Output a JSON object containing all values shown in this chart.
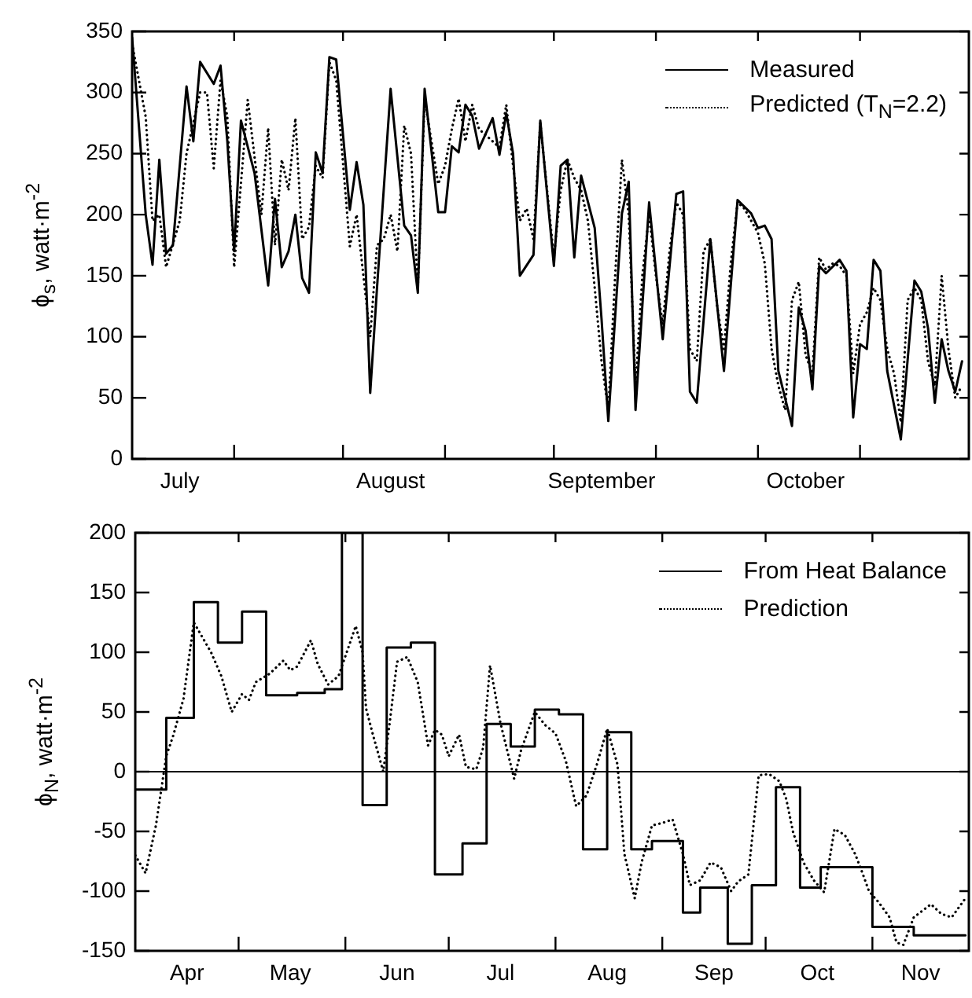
{
  "chart_data": [
    {
      "type": "line",
      "ylabel": "ϕ$_{s}$, watt·m$^{-2}$",
      "legend": "top right",
      "marker": "none",
      "xlim": [
        "--07-01",
        "--11-01"
      ],
      "xticks": [
        {
          "value": "--07-08",
          "label": "July"
        },
        {
          "value": "--07-16",
          "label": null
        },
        {
          "value": "--08-01",
          "label": null
        },
        {
          "value": "--08-08",
          "label": "August"
        },
        {
          "value": "--08-16",
          "label": null
        },
        {
          "value": "--09-01",
          "label": null
        },
        {
          "value": "--09-08",
          "label": "September"
        },
        {
          "value": "--09-16",
          "label": null
        },
        {
          "value": "--10-01",
          "label": null
        },
        {
          "value": "--10-08",
          "label": "October"
        },
        {
          "value": "--10-16",
          "label": null
        }
      ],
      "ylim": [
        0,
        350
      ],
      "yticks": [
        0,
        50,
        100,
        150,
        200,
        250,
        300,
        350
      ],
      "series": [
        {
          "name": "Measured",
          "color": "#000000",
          "line_style": "solid",
          "x": [
            "--07-01",
            "--07-03",
            "--07-04",
            "--07-05",
            "--07-06",
            "--07-07",
            "--07-09",
            "--07-10",
            "--07-11",
            "--07-13",
            "--07-14",
            "--07-15",
            "--07-16",
            "--07-17",
            "--07-19",
            "--07-21",
            "--07-22",
            "--07-23",
            "--07-24",
            "--07-25",
            "--07-26",
            "--07-27",
            "--07-28",
            "--07-29",
            "--07-30",
            "--07-31",
            "--08-02",
            "--08-03",
            "--08-04",
            "--08-05",
            "--08-06",
            "--08-08",
            "--08-10",
            "--08-11",
            "--08-12",
            "--08-13",
            "--08-15",
            "--08-16",
            "--08-17",
            "--08-18",
            "--08-19",
            "--08-20",
            "--08-21",
            "--08-23",
            "--08-24",
            "--08-25",
            "--08-26",
            "--08-27",
            "--08-29",
            "--08-30",
            "--09-01",
            "--09-02",
            "--09-03",
            "--09-04",
            "--09-05",
            "--09-07",
            "--09-08",
            "--09-09",
            "--09-11",
            "--09-12",
            "--09-13",
            "--09-15",
            "--09-17",
            "--09-19",
            "--09-20",
            "--09-21",
            "--09-22",
            "--09-24",
            "--09-26",
            "--09-28",
            "--09-30",
            "--10-01",
            "--10-02",
            "--10-03",
            "--10-04",
            "--10-06",
            "--10-07",
            "--10-08",
            "--10-09",
            "--10-10",
            "--10-11",
            "--10-13",
            "--10-14",
            "--10-15",
            "--10-16",
            "--10-17",
            "--10-18",
            "--10-19",
            "--10-20",
            "--10-22",
            "--10-24",
            "--10-25",
            "--10-26",
            "--10-27",
            "--10-28",
            "--10-29",
            "--10-30",
            "--10-31"
          ],
          "values": [
            345,
            200,
            159,
            245,
            168,
            175,
            305,
            260,
            325,
            307,
            322,
            260,
            170,
            277,
            234,
            142,
            213,
            157,
            170,
            200,
            148,
            136,
            251,
            234,
            329,
            327,
            204,
            243,
            208,
            54,
            140,
            303,
            191,
            183,
            136,
            303,
            202,
            202,
            256,
            251,
            290,
            281,
            254,
            279,
            249,
            283,
            250,
            150,
            167,
            277,
            158,
            240,
            245,
            165,
            232,
            189,
            115,
            31,
            201,
            227,
            40,
            210,
            98,
            217,
            219,
            55,
            46,
            180,
            72,
            212,
            201,
            189,
            191,
            180,
            72,
            27,
            124,
            105,
            57,
            158,
            152,
            163,
            154,
            34,
            94,
            90,
            163,
            154,
            72,
            16,
            146,
            137,
            107,
            46,
            98,
            72,
            55,
            80
          ]
        },
        {
          "name": "Predicted (T$_{N}$=2.2)",
          "color": "#000000",
          "line_style": "dotted",
          "x": [
            "--07-01",
            "--07-03",
            "--07-04",
            "--07-05",
            "--07-06",
            "--07-08",
            "--07-09",
            "--07-11",
            "--07-12",
            "--07-13",
            "--07-14",
            "--07-15",
            "--07-16",
            "--07-18",
            "--07-20",
            "--07-21",
            "--07-22",
            "--07-23",
            "--07-24",
            "--07-25",
            "--07-26",
            "--07-27",
            "--07-28",
            "--07-29",
            "--07-30",
            "--07-31",
            "--08-02",
            "--08-03",
            "--08-05",
            "--08-06",
            "--08-07",
            "--08-08",
            "--08-09",
            "--08-10",
            "--08-11",
            "--08-12",
            "--08-13",
            "--08-15",
            "--08-16",
            "--08-17",
            "--08-18",
            "--08-19",
            "--08-20",
            "--08-21",
            "--08-23",
            "--08-24",
            "--08-25",
            "--08-26",
            "--08-27",
            "--08-28",
            "--08-29",
            "--08-30",
            "--09-01",
            "--09-02",
            "--09-03",
            "--09-04",
            "--09-05",
            "--09-06",
            "--09-07",
            "--09-08",
            "--09-09",
            "--09-10",
            "--09-11",
            "--09-12",
            "--09-13",
            "--09-14",
            "--09-15",
            "--09-16",
            "--09-17",
            "--09-18",
            "--09-19",
            "--09-20",
            "--09-21",
            "--09-22",
            "--09-23",
            "--09-24",
            "--09-25",
            "--09-26",
            "--09-27",
            "--09-28",
            "--09-29",
            "--09-30",
            "--10-01",
            "--10-02",
            "--10-03",
            "--10-04",
            "--10-05",
            "--10-06",
            "--10-07",
            "--10-08",
            "--10-09",
            "--10-10",
            "--10-11",
            "--10-12",
            "--10-13",
            "--10-14",
            "--10-15",
            "--10-16",
            "--10-17",
            "--10-18",
            "--10-19",
            "--10-20",
            "--10-21",
            "--10-22",
            "--10-23",
            "--10-24",
            "--10-25",
            "--10-26",
            "--10-27",
            "--10-28",
            "--10-29",
            "--10-30",
            "--10-31"
          ],
          "values": [
            340,
            280,
            195,
            200,
            157,
            195,
            250,
            300,
            300,
            238,
            310,
            280,
            157,
            294,
            200,
            271,
            175,
            245,
            220,
            279,
            180,
            190,
            240,
            230,
            325,
            310,
            174,
            200,
            100,
            175,
            180,
            200,
            170,
            273,
            250,
            140,
            295,
            225,
            240,
            270,
            295,
            260,
            290,
            270,
            260,
            255,
            290,
            240,
            195,
            205,
            180,
            275,
            165,
            220,
            245,
            230,
            220,
            195,
            140,
            80,
            40,
            150,
            245,
            200,
            60,
            150,
            200,
            150,
            110,
            170,
            210,
            200,
            90,
            80,
            170,
            180,
            125,
            90,
            160,
            210,
            205,
            195,
            185,
            160,
            90,
            60,
            40,
            130,
            145,
            85,
            70,
            165,
            155,
            160,
            158,
            150,
            70,
            110,
            120,
            140,
            130,
            90,
            70,
            30,
            130,
            140,
            130,
            80,
            60,
            150,
            90,
            50,
            60
          ]
        }
      ]
    },
    {
      "type": "line",
      "ylabel": "ϕ$_{N}$, watt·m$^{-2}$",
      "legend": "top right",
      "marker": "none",
      "xlim": [
        "--04-01",
        "--11-29"
      ],
      "xticks": [
        {
          "value": "--04-16",
          "label": "Apr"
        },
        {
          "value": "--05-01",
          "label": null
        },
        {
          "value": "--05-16",
          "label": "May"
        },
        {
          "value": "--06-01",
          "label": null
        },
        {
          "value": "--06-16",
          "label": "Jun"
        },
        {
          "value": "--07-01",
          "label": null
        },
        {
          "value": "--07-16",
          "label": "Jul"
        },
        {
          "value": "--08-01",
          "label": null
        },
        {
          "value": "--08-16",
          "label": "Aug"
        },
        {
          "value": "--09-01",
          "label": null
        },
        {
          "value": "--09-16",
          "label": "Sep"
        },
        {
          "value": "--10-01",
          "label": null
        },
        {
          "value": "--10-16",
          "label": "Oct"
        },
        {
          "value": "--11-01",
          "label": null
        },
        {
          "value": "--11-15",
          "label": "Nov"
        }
      ],
      "ylim": [
        -150,
        200
      ],
      "yticks": [
        -150,
        -100,
        -50,
        0,
        50,
        100,
        150,
        200
      ],
      "ref_lines": [
        {
          "axis": "y",
          "value": 0,
          "color": "#000000"
        }
      ],
      "series": [
        {
          "name": "From Heat Balance",
          "type": "step",
          "color": "#000000",
          "line_style": "solid",
          "x": [
            "--04-01",
            "--04-10",
            "--04-18",
            "--04-25",
            "--05-02",
            "--05-09",
            "--05-18",
            "--05-26",
            "--05-31",
            "--06-06",
            "--06-13",
            "--06-20",
            "--06-27",
            "--07-05",
            "--07-12",
            "--07-19",
            "--07-26",
            "--08-02",
            "--08-09",
            "--08-16",
            "--08-23",
            "--08-29",
            "--09-07",
            "--09-12",
            "--09-20",
            "--09-27",
            "--10-04",
            "--10-11",
            "--10-17",
            "--11-01",
            "--11-13",
            "--11-28"
          ],
          "values": [
            -15,
            45,
            142,
            108,
            134,
            64,
            66,
            69,
            200,
            -28,
            104,
            108,
            -86,
            -60,
            40,
            21,
            52,
            48,
            -65,
            33,
            -65,
            -58,
            -118,
            -97,
            -144,
            -95,
            -13,
            -97,
            -80,
            -130,
            -137,
            -137
          ]
        },
        {
          "name": "Prediction",
          "color": "#000000",
          "line_style": "dotted",
          "x": [
            "--04-01",
            "--04-04",
            "--04-07",
            "--04-10",
            "--04-12",
            "--04-15",
            "--04-18",
            "--04-21",
            "--04-23",
            "--04-26",
            "--04-29",
            "--05-02",
            "--05-04",
            "--05-06",
            "--05-10",
            "--05-14",
            "--05-16",
            "--05-18",
            "--05-22",
            "--05-24",
            "--05-27",
            "--05-30",
            "--06-02",
            "--06-04",
            "--06-06",
            "--06-07",
            "--06-09",
            "--06-12",
            "--06-14",
            "--06-16",
            "--06-19",
            "--06-22",
            "--06-25",
            "--06-27",
            "--06-29",
            "--07-01",
            "--07-04",
            "--07-06",
            "--07-09",
            "--07-11",
            "--07-13",
            "--07-16",
            "--07-20",
            "--07-22",
            "--07-26",
            "--07-29",
            "--08-01",
            "--08-04",
            "--08-07",
            "--08-10",
            "--08-13",
            "--08-16",
            "--08-19",
            "--08-21",
            "--08-24",
            "--08-26",
            "--08-29",
            "--09-01",
            "--09-04",
            "--09-07",
            "--09-09",
            "--09-12",
            "--09-15",
            "--09-18",
            "--09-21",
            "--09-23",
            "--09-26",
            "--09-29",
            "--10-02",
            "--10-05",
            "--10-07",
            "--10-09",
            "--10-12",
            "--10-15",
            "--10-18",
            "--10-21",
            "--10-24",
            "--10-27",
            "--10-29",
            "--10-31",
            "--11-03",
            "--11-06",
            "--11-08",
            "--11-10",
            "--11-13",
            "--11-18",
            "--11-21",
            "--11-24",
            "--11-28"
          ],
          "values": [
            -70,
            -85,
            -45,
            13,
            30,
            61,
            125,
            110,
            100,
            80,
            50,
            65,
            60,
            75,
            82,
            93,
            85,
            88,
            110,
            90,
            73,
            80,
            105,
            122,
            100,
            53,
            31,
            0,
            44,
            92,
            96,
            75,
            22,
            35,
            31,
            13,
            31,
            4,
            2,
            20,
            89,
            41,
            -6,
            18,
            50,
            39,
            32,
            9,
            -29,
            -20,
            6,
            36,
            6,
            -69,
            -106,
            -76,
            -45,
            -43,
            -40,
            -69,
            -95,
            -91,
            -76,
            -80,
            -100,
            -92,
            -86,
            -3,
            -2,
            -8,
            -23,
            -51,
            -76,
            -91,
            -101,
            -48,
            -53,
            -69,
            -84,
            -100,
            -110,
            -122,
            -143,
            -145,
            -122,
            -111,
            -119,
            -122,
            -106
          ]
        }
      ]
    }
  ]
}
